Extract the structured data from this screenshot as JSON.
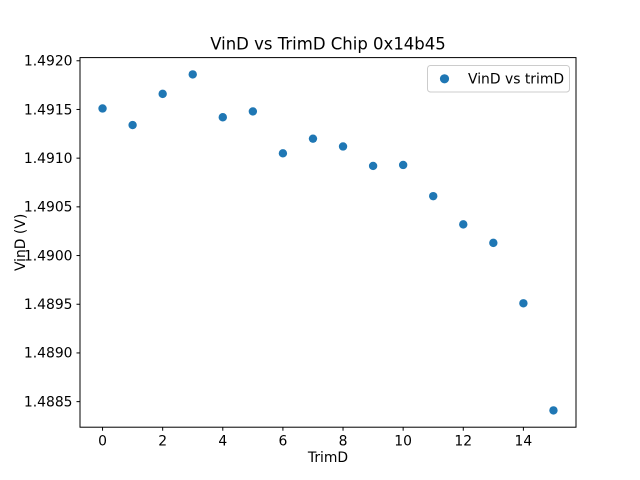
{
  "chart_data": {
    "type": "scatter",
    "title": "VinD vs TrimD Chip 0x14b45",
    "xlabel": "TrimD",
    "ylabel": "VinD (V)",
    "legend_label": "VinD vs trimD",
    "legend_position": "upper right",
    "grid": false,
    "marker_color": "#1f77b4",
    "legend_border_color": "#cccccc",
    "axes_color": "#000000",
    "x": [
      0,
      1,
      2,
      3,
      4,
      5,
      6,
      7,
      8,
      9,
      10,
      11,
      12,
      13,
      14,
      15
    ],
    "y": [
      1.49151,
      1.49134,
      1.49166,
      1.49186,
      1.49142,
      1.49148,
      1.49105,
      1.4912,
      1.49112,
      1.49092,
      1.49093,
      1.49061,
      1.49032,
      1.49013,
      1.48951,
      1.48841
    ],
    "xlim": [
      -0.75,
      15.75
    ],
    "ylim": [
      1.4882375,
      1.4920325
    ],
    "xticks": [
      0,
      2,
      4,
      6,
      8,
      10,
      12,
      14
    ],
    "xtick_labels": [
      "0",
      "2",
      "4",
      "6",
      "8",
      "10",
      "12",
      "14"
    ],
    "yticks": [
      1.4885,
      1.489,
      1.4895,
      1.49,
      1.4905,
      1.491,
      1.4915,
      1.492
    ],
    "ytick_labels": [
      "1.4885",
      "1.4890",
      "1.4895",
      "1.4900",
      "1.4905",
      "1.4910",
      "1.4915",
      "1.4920"
    ]
  }
}
